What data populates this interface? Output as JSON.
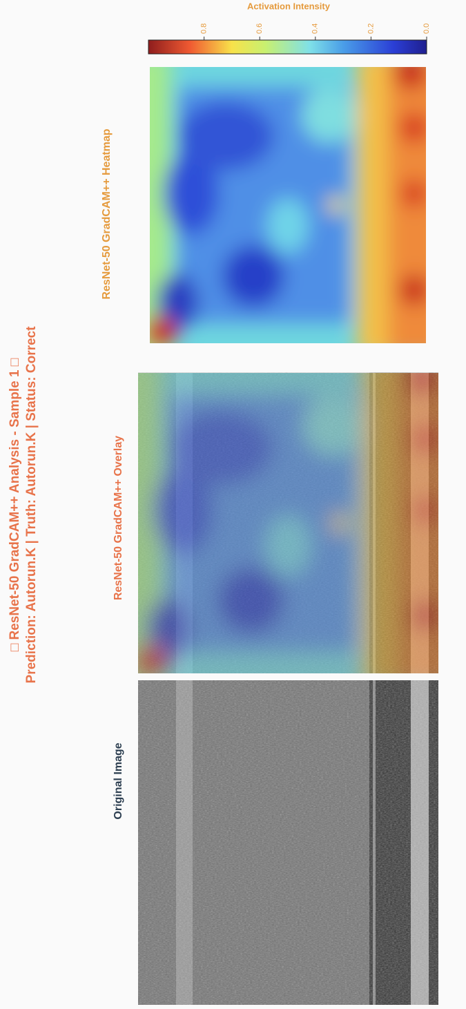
{
  "header": {
    "title": "□ ResNet-50 GradCAM++ Analysis - Sample 1 □",
    "subtitle": "Prediction: Autorun.K | Truth: Autorun.K | Status: Correct"
  },
  "panels": [
    {
      "title": "Original Image"
    },
    {
      "title": "ResNet-50 GradCAM++ Overlay"
    },
    {
      "title": "ResNet-50 GradCAM++ Heatmap"
    }
  ],
  "colorbar": {
    "label": "Activation Intensity",
    "lim": [
      0,
      1
    ],
    "ticks": [
      {
        "value": 0,
        "label": "0.0"
      },
      0.2,
      0.4,
      0.6,
      0.8
    ]
  }
}
